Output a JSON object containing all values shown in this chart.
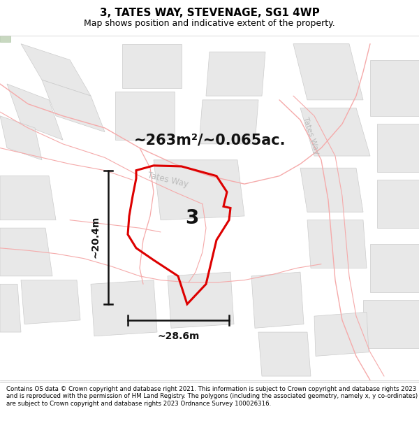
{
  "title_line1": "3, TATES WAY, STEVENAGE, SG1 4WP",
  "title_line2": "Map shows position and indicative extent of the property.",
  "area_text": "~263m²/~0.065ac.",
  "label_3": "3",
  "width_label": "~28.6m",
  "height_label": "~20.4m",
  "footer_text": "Contains OS data © Crown copyright and database right 2021. This information is subject to Crown copyright and database rights 2023 and is reproduced with the permission of HM Land Registry. The polygons (including the associated geometry, namely x, y co-ordinates) are subject to Crown copyright and database rights 2023 Ordnance Survey 100026316.",
  "map_bg": "#ffffff",
  "title_bg": "#ffffff",
  "footer_bg": "#ffffff",
  "property_fill": "none",
  "property_edge": "#dd0000",
  "road_color": "#f5aaaa",
  "block_fill": "#e8e8e8",
  "block_edge": "#cccccc",
  "tates_way_color": "#bbbbbb",
  "arrow_color": "#111111",
  "area_text_color": "#111111",
  "label_color": "#111111"
}
